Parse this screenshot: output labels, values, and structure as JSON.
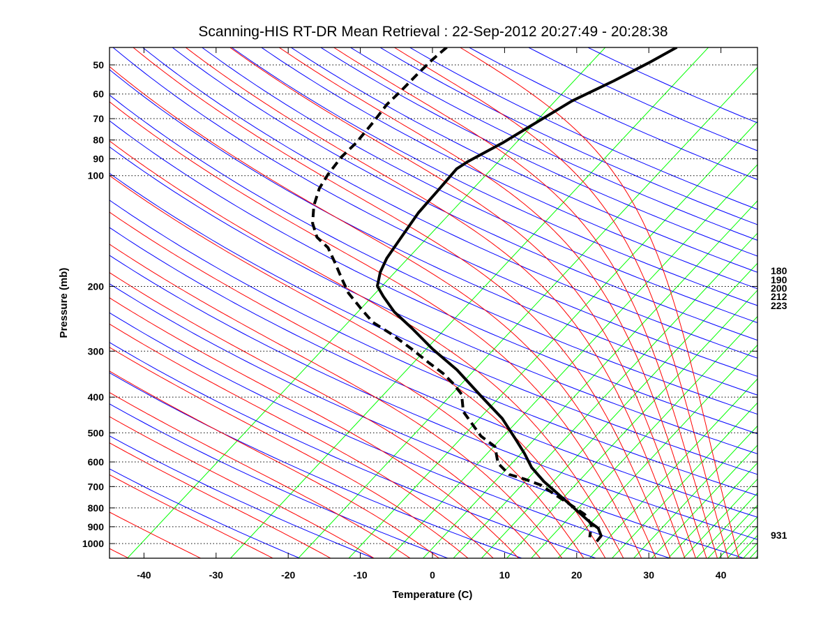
{
  "chart_data": {
    "type": "line",
    "subtype": "skew-t log-p",
    "title": "Scanning-HIS RT-DR Mean Retrieval : 22-Sep-2012 20:27:49 - 20:28:38",
    "xlabel": "Temperature (C)",
    "ylabel": "Pressure (mb)",
    "xlim": [
      -45,
      45
    ],
    "ylim_mb": [
      1100,
      45
    ],
    "skew_c_per_ln_p": 20.7,
    "skew_reference_mb": 1000,
    "x_ticks": [
      "-40",
      "-30",
      "-20",
      "-10",
      "0",
      "10",
      "20",
      "30",
      "40"
    ],
    "y_ticks": [
      "50",
      "60",
      "70",
      "80",
      "90",
      "100",
      "200",
      "300",
      "400",
      "500",
      "600",
      "700",
      "800",
      "900",
      "1000"
    ],
    "grid": "dotted horizontal at pressure ticks",
    "right_labels": [
      "180",
      "190",
      "200",
      "212",
      "223",
      "931"
    ],
    "right_label_pressures": [
      180,
      190,
      200,
      212,
      223,
      931
    ],
    "background_colors": {
      "dry_adiabats": "#0000ff",
      "moist_adiabats": "#ff0000",
      "isotherm_lines": "#00ff00"
    },
    "dry_adiabat_theta_k": [
      250,
      260,
      270,
      280,
      290,
      300,
      310,
      320,
      330,
      340,
      350,
      360,
      370,
      380,
      390,
      400,
      410,
      420,
      430,
      440,
      450,
      460,
      470,
      480,
      490,
      500,
      520,
      540,
      560
    ],
    "moist_adiabat_start_c_at_1100mb": [
      -40,
      -30,
      -20,
      -12,
      -6,
      -1,
      3,
      7,
      10.5,
      14,
      17,
      20,
      23,
      26,
      28.5,
      31,
      33,
      35,
      37,
      38.5,
      40,
      41.5,
      43,
      44.5
    ],
    "green_line_x_at_bottom_c": [
      -42.3,
      -28,
      -18.6,
      -11.6,
      -6,
      -1.3,
      2.9,
      6.8,
      10.3,
      13.7,
      17.4,
      21.8,
      24.9,
      27.9,
      30.4,
      32.7,
      34.8,
      36.6,
      38.2,
      39.7,
      40.9,
      42.1,
      43.1,
      44,
      44.8
    ],
    "series": [
      {
        "name": "Temperature",
        "style": "solid",
        "color": "#000000",
        "points_p_mb_t_c": [
          [
            44.8,
            -30.4
          ],
          [
            49.4,
            -32.3
          ],
          [
            55.3,
            -34.8
          ],
          [
            62.7,
            -38.0
          ],
          [
            71.5,
            -40.1
          ],
          [
            81.5,
            -42.2
          ],
          [
            91.7,
            -44.6
          ],
          [
            95.8,
            -45.2
          ],
          [
            108.3,
            -45.0
          ],
          [
            126.2,
            -44.8
          ],
          [
            147.0,
            -44.0
          ],
          [
            167.7,
            -43.3
          ],
          [
            182.9,
            -42.4
          ],
          [
            199.6,
            -41.0
          ],
          [
            213.1,
            -38.8
          ],
          [
            234.6,
            -35.3
          ],
          [
            259.5,
            -30.8
          ],
          [
            295.8,
            -25.2
          ],
          [
            337.2,
            -19.1
          ],
          [
            398.0,
            -12.3
          ],
          [
            457.5,
            -6.5
          ],
          [
            521.7,
            -1.9
          ],
          [
            569.3,
            1.1
          ],
          [
            621.2,
            3.9
          ],
          [
            678.0,
            7.4
          ],
          [
            746.2,
            11.8
          ],
          [
            807.3,
            15.4
          ],
          [
            873.4,
            19.0
          ],
          [
            908.4,
            21.0
          ],
          [
            953.1,
            22.4
          ],
          [
            987.0,
            22.5
          ]
        ]
      },
      {
        "name": "Dewpoint",
        "style": "dashed",
        "color": "#000000",
        "points_p_mb_t_c": [
          [
            44.8,
            -62.3
          ],
          [
            48.3,
            -62.7
          ],
          [
            52.7,
            -62.9
          ],
          [
            58.8,
            -63.0
          ],
          [
            64.1,
            -63.2
          ],
          [
            71.5,
            -62.8
          ],
          [
            81.5,
            -62.5
          ],
          [
            89.0,
            -62.7
          ],
          [
            99.3,
            -62.3
          ],
          [
            108.3,
            -61.7
          ],
          [
            120.8,
            -60.2
          ],
          [
            134.8,
            -58.1
          ],
          [
            147.0,
            -55.7
          ],
          [
            157.0,
            -52.8
          ],
          [
            171.3,
            -50.1
          ],
          [
            191.1,
            -46.8
          ],
          [
            208.5,
            -44.1
          ],
          [
            232.5,
            -39.9
          ],
          [
            250.5,
            -36.9
          ],
          [
            268.7,
            -33.0
          ],
          [
            295.8,
            -28.1
          ],
          [
            322.7,
            -23.9
          ],
          [
            344.5,
            -20.6
          ],
          [
            367.9,
            -17.8
          ],
          [
            392.8,
            -15.3
          ],
          [
            438.1,
            -12.8
          ],
          [
            510.4,
            -7.2
          ],
          [
            545.0,
            -3.9
          ],
          [
            605.3,
            -1.3
          ],
          [
            649.1,
            1.7
          ],
          [
            666.3,
            4.2
          ],
          [
            692.8,
            7.4
          ],
          [
            746.2,
            11.4
          ],
          [
            789.9,
            14.5
          ],
          [
            832.5,
            17.3
          ],
          [
            888.9,
            19.6
          ],
          [
            961.5,
            21.0
          ]
        ]
      }
    ]
  }
}
